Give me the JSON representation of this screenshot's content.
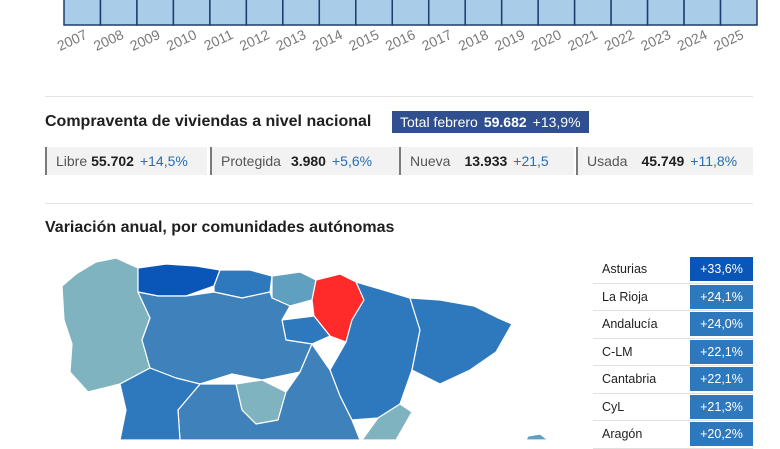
{
  "timeline": {
    "years": [
      "2007",
      "2008",
      "2009",
      "2010",
      "2011",
      "2012",
      "2013",
      "2014",
      "2015",
      "2016",
      "2017",
      "2018",
      "2019",
      "2020",
      "2021",
      "2022",
      "2023",
      "2024",
      "2025"
    ],
    "bar_fill": "#a9cde8",
    "bar_stroke": "#1e3c6e"
  },
  "summary": {
    "title": "Compraventa de viviendas a nivel nacional",
    "total_label": "Total febrero",
    "total_value": "59.682",
    "total_change": "+13,9%",
    "total_bg": "#2f4f8f",
    "stats": [
      {
        "label": "Libre",
        "value": "55.702",
        "change": "+14,5%"
      },
      {
        "label": "Protegida",
        "value": "3.980",
        "change": "+5,6%"
      },
      {
        "label": "Nueva",
        "value": "13.933",
        "change": "+21,5"
      },
      {
        "label": "Usada",
        "value": "45.749",
        "change": "+11,8%"
      }
    ]
  },
  "regions": {
    "title": "Variación anual, por comunidades autónomas",
    "highlight_color": "#ff2a2a",
    "rows": [
      {
        "name": "Asturias",
        "change": "+33,6%",
        "color": "#0a56b8"
      },
      {
        "name": "La Rioja",
        "change": "+24,1%",
        "color": "#2e79bd"
      },
      {
        "name": "Andalucía",
        "change": "+24,0%",
        "color": "#2e79bd"
      },
      {
        "name": "C-LM",
        "change": "+22,1%",
        "color": "#2e79bd"
      },
      {
        "name": "Cantabria",
        "change": "+22,1%",
        "color": "#2e79bd"
      },
      {
        "name": "CyL",
        "change": "+21,3%",
        "color": "#2e79bd"
      },
      {
        "name": "Aragón",
        "change": "+20,2%",
        "color": "#2e79bd"
      }
    ]
  },
  "chart_data": {
    "type": "bar",
    "categories": [
      "2007",
      "2008",
      "2009",
      "2010",
      "2011",
      "2012",
      "2013",
      "2014",
      "2015",
      "2016",
      "2017",
      "2018",
      "2019",
      "2020",
      "2021",
      "2022",
      "2023",
      "2024",
      "2025"
    ],
    "title": "",
    "xlabel": "",
    "ylabel": ""
  }
}
